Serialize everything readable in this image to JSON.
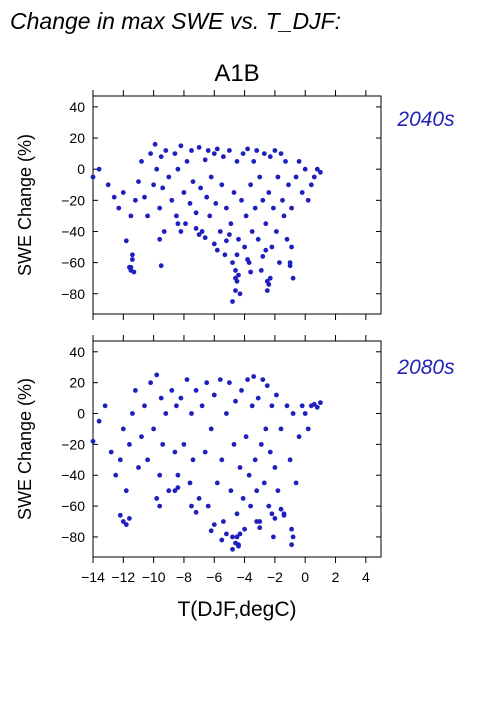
{
  "figure": {
    "title": "Change in max SWE vs. T_DJF:",
    "scenario": "A1B",
    "xlabel": "T(DJF,degC)",
    "ylabel": "SWE Change (%)"
  },
  "chart_data": [
    {
      "type": "scatter",
      "panel_label": "2040s",
      "xlabel": "",
      "ylabel": "SWE Change (%)",
      "xlim": [
        -14,
        5
      ],
      "ylim": [
        -93,
        47
      ],
      "x_ticks": [
        -14,
        -12,
        -10,
        -8,
        -6,
        -4,
        -2,
        0,
        2,
        4
      ],
      "y_ticks": [
        -80,
        -60,
        -40,
        -20,
        0,
        20,
        40
      ],
      "point_color": "#1f1fbf",
      "x": [
        -14.0,
        -13.6,
        -13.0,
        -12.6,
        -12.3,
        -12.0,
        -11.8,
        -11.6,
        -11.5,
        -11.5,
        -11.4,
        -11.2,
        -11.0,
        -10.8,
        -10.6,
        -10.4,
        -10.2,
        -10.0,
        -9.9,
        -9.8,
        -9.6,
        -9.5,
        -9.4,
        -9.3,
        -9.2,
        -9.0,
        -8.8,
        -8.6,
        -8.5,
        -8.4,
        -8.2,
        -8.0,
        -7.9,
        -7.8,
        -7.6,
        -7.5,
        -7.4,
        -7.2,
        -7.0,
        -6.9,
        -6.8,
        -6.6,
        -6.5,
        -6.4,
        -6.3,
        -6.2,
        -6.0,
        -5.9,
        -5.8,
        -5.6,
        -5.5,
        -5.4,
        -5.3,
        -5.2,
        -5.0,
        -4.9,
        -4.8,
        -4.7,
        -4.6,
        -4.5,
        -4.4,
        -4.3,
        -4.2,
        -4.1,
        -4.0,
        -3.9,
        -3.8,
        -3.7,
        -3.6,
        -3.5,
        -3.4,
        -3.3,
        -3.2,
        -3.1,
        -3.0,
        -2.9,
        -2.8,
        -2.7,
        -2.6,
        -2.5,
        -2.4,
        -2.3,
        -2.2,
        -2.1,
        -2.0,
        -1.9,
        -1.8,
        -1.7,
        -1.6,
        -1.5,
        -1.4,
        -1.3,
        -1.2,
        -1.1,
        -1.0,
        -0.9,
        -0.8,
        -0.6,
        -0.4,
        -0.2,
        0.0,
        0.2,
        0.4,
        0.6,
        0.8,
        1.0,
        -11.5,
        -11.4,
        -11.3,
        -9.6,
        -9.5,
        -4.8,
        -4.6,
        -4.5,
        -4.4,
        -2.5,
        -2.4,
        -2.3,
        -1.0,
        -0.9,
        -4.6,
        -4.5,
        -6.0,
        -5.8,
        -3.8,
        -3.6,
        -7.2,
        -7.0,
        -6.6,
        -2.8,
        -2.6,
        -8.4,
        -8.2,
        -5.2,
        -5.0
      ],
      "y": [
        -5,
        0,
        -10,
        -18,
        -25,
        -15,
        -46,
        -63,
        -65,
        -30,
        -55,
        -20,
        -8,
        5,
        -18,
        -30,
        10,
        -10,
        16,
        0,
        -25,
        8,
        -12,
        -40,
        12,
        -5,
        -20,
        10,
        -30,
        0,
        15,
        -15,
        -35,
        5,
        -22,
        12,
        -8,
        -28,
        14,
        -12,
        -40,
        6,
        -18,
        12,
        -30,
        -5,
        10,
        -22,
        13,
        -40,
        -10,
        8,
        -55,
        -25,
        12,
        -35,
        -60,
        -15,
        -70,
        5,
        -45,
        -80,
        -20,
        10,
        -50,
        -30,
        13,
        -60,
        -10,
        -40,
        5,
        -25,
        12,
        -45,
        -5,
        -65,
        -20,
        10,
        -35,
        -72,
        -15,
        8,
        -50,
        -25,
        12,
        -40,
        -5,
        -60,
        10,
        -20,
        -30,
        5,
        -45,
        -10,
        -60,
        -25,
        -70,
        -5,
        5,
        -15,
        0,
        -20,
        -10,
        -5,
        0,
        -2,
        -63,
        -58,
        -66,
        -45,
        -62,
        -85,
        -78,
        -72,
        -68,
        -78,
        -74,
        -70,
        -62,
        -50,
        -65,
        -55,
        -48,
        -52,
        -58,
        -66,
        -38,
        -42,
        -44,
        -56,
        -52,
        -35,
        -40,
        -46,
        -42
      ]
    },
    {
      "type": "scatter",
      "panel_label": "2080s",
      "xlabel": "T(DJF,degC)",
      "ylabel": "SWE Change (%)",
      "xlim": [
        -14,
        5
      ],
      "ylim": [
        -93,
        47
      ],
      "x_ticks": [
        -14,
        -12,
        -10,
        -8,
        -6,
        -4,
        -2,
        0,
        2,
        4
      ],
      "x_tick_labels": [
        "−14",
        "−12",
        "−10",
        "−8",
        "−6",
        "−4",
        "−2",
        "0",
        "2",
        "4"
      ],
      "y_ticks": [
        -80,
        -60,
        -40,
        -20,
        0,
        20,
        40
      ],
      "point_color": "#1f1fbf",
      "x": [
        -14.0,
        -13.6,
        -13.2,
        -12.8,
        -12.5,
        -12.2,
        -12.0,
        -11.8,
        -11.6,
        -11.4,
        -11.2,
        -11.0,
        -10.8,
        -10.6,
        -10.4,
        -10.2,
        -10.0,
        -9.8,
        -9.6,
        -9.5,
        -9.4,
        -9.2,
        -9.0,
        -8.8,
        -8.6,
        -8.5,
        -8.4,
        -8.2,
        -8.0,
        -7.8,
        -7.6,
        -7.5,
        -7.4,
        -7.2,
        -7.0,
        -6.8,
        -6.6,
        -6.5,
        -6.4,
        -6.2,
        -6.0,
        -5.8,
        -5.6,
        -5.5,
        -5.4,
        -5.2,
        -5.0,
        -4.9,
        -4.8,
        -4.7,
        -4.6,
        -4.5,
        -4.4,
        -4.3,
        -4.2,
        -4.1,
        -4.0,
        -3.9,
        -3.8,
        -3.7,
        -3.6,
        -3.5,
        -3.4,
        -3.3,
        -3.2,
        -3.1,
        -3.0,
        -2.9,
        -2.8,
        -2.7,
        -2.6,
        -2.5,
        -2.4,
        -2.3,
        -2.2,
        -2.1,
        -2.0,
        -1.9,
        -1.8,
        -1.6,
        -1.4,
        -1.2,
        -1.0,
        -0.9,
        -0.8,
        -0.6,
        -0.4,
        -0.2,
        0.0,
        0.2,
        0.4,
        0.6,
        0.8,
        1.0,
        -12.2,
        -12.0,
        -11.8,
        -11.6,
        -9.8,
        -9.6,
        -4.8,
        -4.6,
        -4.5,
        -4.4,
        -4.3,
        -0.9,
        -0.8,
        -3.2,
        -3.0,
        -6.2,
        -6.0,
        -1.6,
        -1.4,
        -7.5,
        -7.2,
        -5.5,
        -5.2,
        -2.2,
        -2.0,
        -8.6,
        -8.4
      ],
      "y": [
        -18,
        -5,
        5,
        -25,
        -40,
        -30,
        -10,
        -50,
        -20,
        0,
        15,
        -35,
        -15,
        5,
        -30,
        20,
        -10,
        25,
        -40,
        10,
        -20,
        0,
        -50,
        15,
        -25,
        5,
        -40,
        10,
        -20,
        22,
        -45,
        0,
        -30,
        15,
        -55,
        5,
        -25,
        20,
        -60,
        -10,
        12,
        -45,
        22,
        -30,
        -70,
        0,
        20,
        -50,
        -80,
        -20,
        8,
        -65,
        -85,
        -35,
        15,
        -55,
        -75,
        -15,
        22,
        -40,
        -60,
        5,
        24,
        -30,
        -50,
        10,
        -70,
        -20,
        22,
        -45,
        -10,
        18,
        -60,
        -25,
        5,
        -80,
        -35,
        12,
        -50,
        -10,
        -65,
        5,
        -30,
        -75,
        0,
        -45,
        -15,
        5,
        0,
        -10,
        5,
        6,
        4,
        7,
        -66,
        -70,
        -72,
        -68,
        -55,
        -60,
        -88,
        -84,
        -80,
        -86,
        -78,
        -85,
        -80,
        -70,
        -74,
        -76,
        -72,
        -62,
        -66,
        -60,
        -64,
        -82,
        -78,
        -65,
        -68,
        -50,
        -48
      ]
    }
  ]
}
